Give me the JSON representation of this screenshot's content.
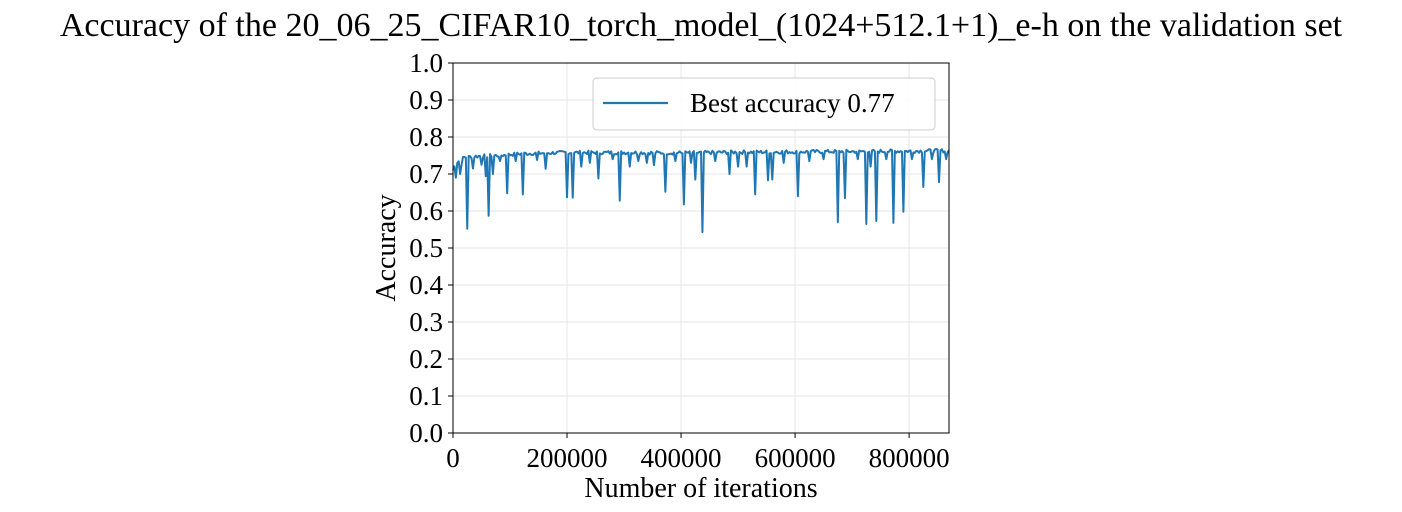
{
  "chart_data": {
    "type": "line",
    "title": "Accuracy of the 20_06_25_CIFAR10_torch_model_(1024+512.1+1)_e-h on the validation set",
    "xlabel": "Number of iterations",
    "ylabel": "Accuracy",
    "xlim": [
      0,
      870000
    ],
    "ylim": [
      0.0,
      1.0
    ],
    "x_ticks": [
      0,
      200000,
      400000,
      600000,
      800000
    ],
    "y_ticks": [
      0.0,
      0.1,
      0.2,
      0.3,
      0.4,
      0.5,
      0.6,
      0.7,
      0.8,
      0.9,
      1.0
    ],
    "x_tick_labels": [
      "0",
      "200000",
      "400000",
      "600000",
      "800000"
    ],
    "y_tick_labels": [
      "0.0",
      "0.1",
      "0.2",
      "0.3",
      "0.4",
      "0.5",
      "0.6",
      "0.7",
      "0.8",
      "0.9",
      "1.0"
    ],
    "grid": true,
    "legend_position": "top-right",
    "colors": {
      "series": "#1f77b4",
      "grid": "#e6e6e6",
      "axes": "#000000"
    },
    "series": [
      {
        "name": "Best accuracy 0.77",
        "baseline": [
          [
            0,
            0.71
          ],
          [
            5000,
            0.73
          ],
          [
            10000,
            0.735
          ],
          [
            20000,
            0.745
          ],
          [
            40000,
            0.748
          ],
          [
            80000,
            0.75
          ],
          [
            120000,
            0.755
          ],
          [
            200000,
            0.758
          ],
          [
            300000,
            0.758
          ],
          [
            400000,
            0.757
          ],
          [
            500000,
            0.759
          ],
          [
            600000,
            0.76
          ],
          [
            700000,
            0.761
          ],
          [
            800000,
            0.762
          ],
          [
            870000,
            0.763
          ]
        ],
        "dips": [
          [
            6000,
            0.69
          ],
          [
            12000,
            0.7
          ],
          [
            16000,
            0.725
          ],
          [
            24000,
            0.552
          ],
          [
            35000,
            0.715
          ],
          [
            50000,
            0.725
          ],
          [
            57000,
            0.694
          ],
          [
            62000,
            0.587
          ],
          [
            70000,
            0.7
          ],
          [
            83000,
            0.735
          ],
          [
            95000,
            0.648
          ],
          [
            110000,
            0.735
          ],
          [
            122000,
            0.645
          ],
          [
            147000,
            0.738
          ],
          [
            163000,
            0.714
          ],
          [
            200000,
            0.637
          ],
          [
            210000,
            0.636
          ],
          [
            225000,
            0.72
          ],
          [
            240000,
            0.73
          ],
          [
            255000,
            0.688
          ],
          [
            280000,
            0.74
          ],
          [
            292000,
            0.628
          ],
          [
            310000,
            0.72
          ],
          [
            325000,
            0.735
          ],
          [
            340000,
            0.73
          ],
          [
            352000,
            0.724
          ],
          [
            372000,
            0.652
          ],
          [
            390000,
            0.735
          ],
          [
            406000,
            0.618
          ],
          [
            418000,
            0.73
          ],
          [
            425000,
            0.685
          ],
          [
            437000,
            0.543
          ],
          [
            460000,
            0.735
          ],
          [
            486000,
            0.7
          ],
          [
            500000,
            0.72
          ],
          [
            514000,
            0.72
          ],
          [
            530000,
            0.645
          ],
          [
            552000,
            0.683
          ],
          [
            560000,
            0.685
          ],
          [
            580000,
            0.73
          ],
          [
            605000,
            0.64
          ],
          [
            625000,
            0.735
          ],
          [
            650000,
            0.74
          ],
          [
            675000,
            0.57
          ],
          [
            687000,
            0.635
          ],
          [
            710000,
            0.74
          ],
          [
            724000,
            0.565
          ],
          [
            733000,
            0.72
          ],
          [
            742000,
            0.573
          ],
          [
            760000,
            0.74
          ],
          [
            772000,
            0.568
          ],
          [
            790000,
            0.598
          ],
          [
            805000,
            0.74
          ],
          [
            825000,
            0.665
          ],
          [
            840000,
            0.74
          ],
          [
            853000,
            0.678
          ],
          [
            865000,
            0.74
          ]
        ]
      }
    ]
  }
}
